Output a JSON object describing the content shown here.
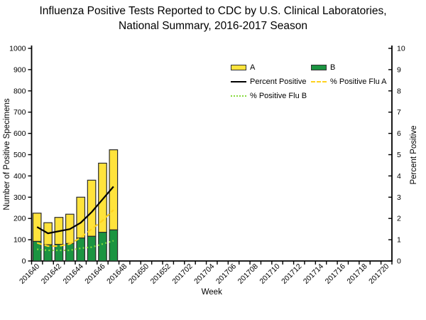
{
  "title": {
    "line1": "Influenza Positive Tests Reported to CDC by U.S. Clinical Laboratories,",
    "line2": "National Summary, 2016-2017 Season"
  },
  "legend": {
    "items": [
      {
        "label": "A",
        "swatch": "bar",
        "color": "#FFE33C"
      },
      {
        "label": "B",
        "swatch": "bar",
        "color": "#1B9441"
      },
      {
        "label": "Percent Positive",
        "swatch": "line-solid",
        "color": "#000000"
      },
      {
        "label": "% Positive Flu A",
        "swatch": "line-dashed",
        "color": "#FFD21E"
      },
      {
        "label": "% Positive Flu B",
        "swatch": "line-dotted",
        "color": "#86DA3E"
      }
    ]
  },
  "chart_data": {
    "type": "bar",
    "subtype": "stacked-bars-with-percent-lines",
    "title": "Influenza Positive Tests Reported to CDC by U.S. Clinical Laboratories, National Summary, 2016-2017 Season",
    "xlabel": "Week",
    "ylabel_left": "Number of Positive Specimens",
    "ylabel_right": "Percent Positive",
    "ylim_left": [
      0,
      1000
    ],
    "ytick_step_left": 100,
    "ylim_right": [
      0,
      10
    ],
    "ytick_step_right": 1,
    "grid": false,
    "x_categories": [
      "201640",
      "201641",
      "201642",
      "201643",
      "201644",
      "201645",
      "201646",
      "201647",
      "201648",
      "201649",
      "201650",
      "201651",
      "201652",
      "201701",
      "201702",
      "201703",
      "201704",
      "201705",
      "201706",
      "201707",
      "201708",
      "201709",
      "201710",
      "201711",
      "201712",
      "201713",
      "201714",
      "201715",
      "201716",
      "201717",
      "201718",
      "201719",
      "201720"
    ],
    "x_label_interval": 2,
    "bar_weeks": [
      "201640",
      "201641",
      "201642",
      "201643",
      "201644",
      "201645",
      "201646",
      "201647"
    ],
    "series": [
      {
        "name": "B",
        "type": "bar",
        "stack_order": 0,
        "color": "#1B9441",
        "values": [
          92,
          76,
          78,
          82,
          108,
          116,
          135,
          146
        ]
      },
      {
        "name": "A",
        "type": "bar",
        "stack_order": 1,
        "color": "#FFE33C",
        "values": [
          133,
          104,
          127,
          138,
          192,
          264,
          325,
          377
        ]
      },
      {
        "name": "Percent Positive",
        "type": "line",
        "dash": "solid",
        "axis": "right",
        "color": "#000000",
        "values": [
          1.6,
          1.3,
          1.4,
          1.5,
          1.8,
          2.3,
          2.9,
          3.5
        ]
      },
      {
        "name": "% Positive Flu A",
        "type": "line",
        "dash": "dashed",
        "axis": "right",
        "color": "#FFD21E",
        "values": [
          0.85,
          0.7,
          0.7,
          0.8,
          1.1,
          1.5,
          1.9,
          2.4
        ]
      },
      {
        "name": "% Positive Flu B",
        "type": "line",
        "dash": "dotted",
        "axis": "right",
        "color": "#86DA3E",
        "values": [
          0.55,
          0.5,
          0.5,
          0.5,
          0.6,
          0.65,
          0.8,
          0.95
        ]
      }
    ]
  }
}
